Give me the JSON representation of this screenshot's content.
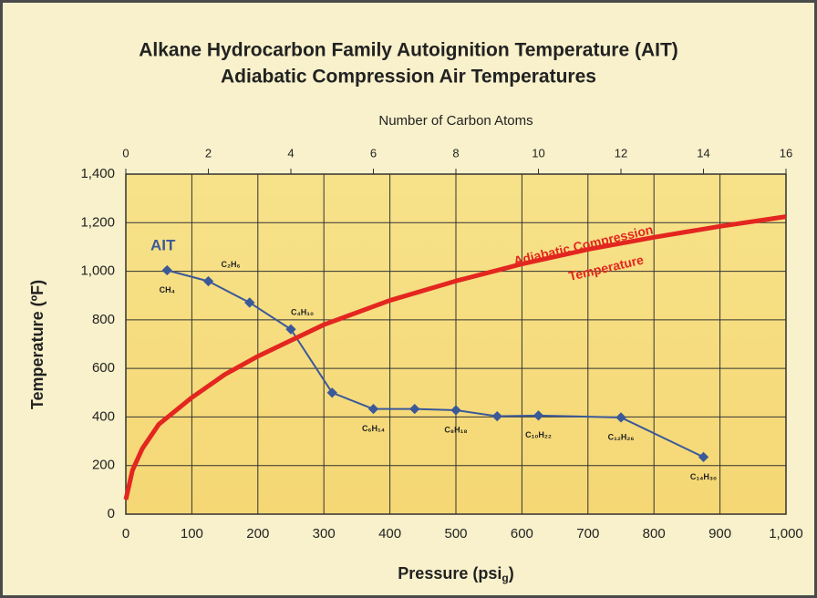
{
  "chart_data": {
    "type": "line",
    "title": [
      "Alkane Hydrocarbon Family Autoignition Temperature (AIT)",
      "Adiabatic Compression Air Temperatures"
    ],
    "x_label": {
      "text": "Pressure (psi",
      "subscript": "g",
      "suffix": ")"
    },
    "x2_label": "Number of Carbon Atoms",
    "y_label": "Temperature (ºF)",
    "xlim": [
      0,
      1000
    ],
    "xticks": [
      0,
      100,
      200,
      300,
      400,
      500,
      600,
      700,
      800,
      900,
      {
        "value": 1000,
        "label": "1,000"
      }
    ],
    "x2lim": [
      0,
      16
    ],
    "x2ticks": [
      0,
      2,
      4,
      6,
      8,
      10,
      12,
      14,
      16
    ],
    "ylim": [
      0,
      1400
    ],
    "yticks": [
      0,
      200,
      400,
      600,
      800,
      {
        "value": 1000,
        "label": "1,000"
      },
      {
        "value": 1200,
        "label": "1,200"
      },
      {
        "value": 1400,
        "label": "1,400"
      }
    ],
    "grid": true,
    "series": [
      {
        "name": "AIT",
        "color": "#3b5998",
        "axis": "x2",
        "x": [
          1,
          2,
          3,
          4,
          5,
          6,
          7,
          8,
          9,
          10,
          12,
          14
        ],
        "values": [
          1004,
          959,
          871,
          761,
          500,
          433,
          433,
          428,
          403,
          406,
          398,
          235
        ],
        "point_labels": [
          "CH₄",
          "C₂H₆",
          null,
          "C₄H₁₀",
          null,
          "C₆H₁₄",
          null,
          "C₈H₁₈",
          null,
          "C₁₀H₂₂",
          "C₁₂H₂₆",
          "C₁₄H₃₀"
        ]
      },
      {
        "name": "Adiabatic Compression Temperature",
        "name_lines": [
          "Adiabatic Compression",
          "Temperature"
        ],
        "color": "#e3261f",
        "x": [
          0,
          10,
          25,
          50,
          100,
          150,
          200,
          300,
          400,
          500,
          600,
          700,
          800,
          900,
          1000
        ],
        "values": [
          60,
          180,
          270,
          370,
          480,
          575,
          650,
          780,
          880,
          960,
          1030,
          1090,
          1140,
          1185,
          1225
        ]
      }
    ]
  }
}
